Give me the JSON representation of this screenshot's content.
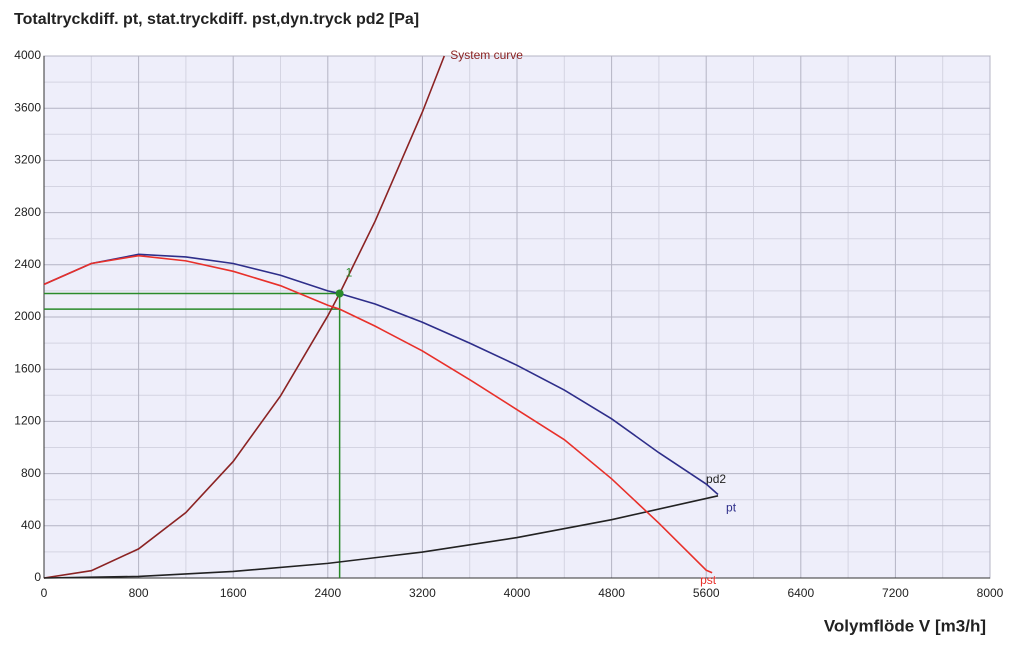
{
  "chart_data": {
    "type": "line",
    "title": "Totaltryckdiff.  pt,  stat.tryckdiff. pst,dyn.tryck pd2 [Pa]",
    "x_label": "Volymflöde V [m3/h]",
    "xlim": [
      0,
      8000
    ],
    "ylim": [
      0,
      4000
    ],
    "xticks": [
      0,
      800,
      1600,
      2400,
      3200,
      4000,
      4800,
      5600,
      6400,
      7200,
      8000
    ],
    "yticks": [
      0,
      400,
      800,
      1200,
      1600,
      2000,
      2400,
      2800,
      3200,
      3600,
      4000
    ],
    "grid": true,
    "series": [
      {
        "name": "System curve",
        "color": "#8b2323",
        "x": [
          0,
          400,
          800,
          1200,
          1600,
          2000,
          2400,
          2500,
          2800,
          3200,
          3385
        ],
        "values": [
          0,
          56,
          223,
          502,
          893,
          1395,
          2009,
          2180,
          2734,
          3571,
          4000
        ]
      },
      {
        "name": "pd2",
        "color": "#222222",
        "x": [
          0,
          800,
          1600,
          2400,
          3200,
          4000,
          4800,
          5700
        ],
        "values": [
          0,
          12,
          50,
          112,
          199,
          310,
          447,
          630
        ]
      },
      {
        "name": "pt",
        "color": "#2e2e8a",
        "x": [
          0,
          400,
          800,
          1200,
          1600,
          2000,
          2400,
          2500,
          2800,
          3200,
          3600,
          4000,
          4400,
          4800,
          5200,
          5600,
          5700
        ],
        "values": [
          2250,
          2410,
          2480,
          2460,
          2410,
          2320,
          2200,
          2180,
          2100,
          1960,
          1800,
          1630,
          1440,
          1220,
          960,
          720,
          640
        ]
      },
      {
        "name": "pst",
        "color": "#e8302a",
        "x": [
          0,
          400,
          800,
          1200,
          1600,
          2000,
          2400,
          2500,
          2800,
          3200,
          3600,
          4000,
          4400,
          4800,
          5200,
          5600,
          5650
        ],
        "values": [
          2250,
          2410,
          2470,
          2430,
          2350,
          2240,
          2090,
          2060,
          1930,
          1740,
          1520,
          1290,
          1060,
          760,
          420,
          60,
          40
        ]
      }
    ],
    "operating_point": {
      "x": 2500,
      "y": 2180,
      "pst": 2060,
      "label": "1",
      "color": "#2a8a2a"
    }
  }
}
